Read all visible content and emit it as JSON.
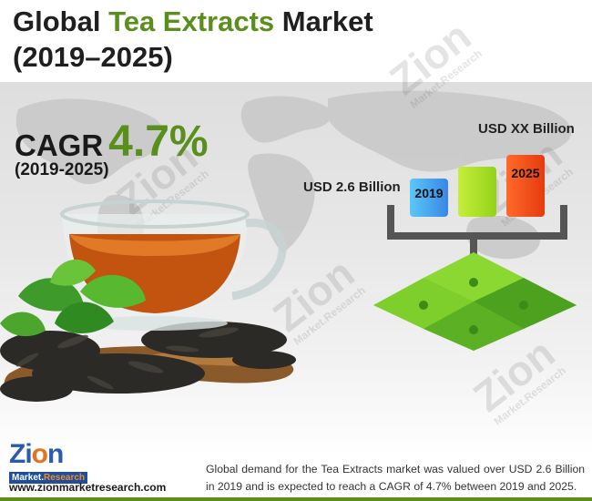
{
  "title": {
    "prefix": "Global ",
    "highlight": "Tea Extracts",
    "suffix": " Market",
    "period": "(2019–2025)"
  },
  "cagr": {
    "label": "CAGR",
    "value": "4.7%",
    "period": "(2019-2025)"
  },
  "bars": [
    {
      "year": "2019",
      "value_label": "USD 2.6 Billion",
      "color": "#4aa0ee"
    },
    {
      "year": "",
      "value_label": "",
      "color": "#a8e01e"
    },
    {
      "year": "2025",
      "value_label": "USD XX Billion",
      "color": "#f24a12"
    }
  ],
  "watermark": {
    "brand": "Zion",
    "tagline": "Market.Research"
  },
  "logo": {
    "name_a": "Zi",
    "name_o": "o",
    "name_b": "n",
    "sub_a": "Market.",
    "sub_b": "Research"
  },
  "footer": {
    "url": "www.zionmarketresearch.com",
    "text": "Global demand for the Tea Extracts market was valued over USD 2.6 Billion in 2019 and is expected to reach a CAGR of 4.7% between 2019 and 2025."
  },
  "colors": {
    "accent_green": "#5a8f1e",
    "brand_blue": "#2a5ca8",
    "brand_orange": "#e6731c"
  }
}
